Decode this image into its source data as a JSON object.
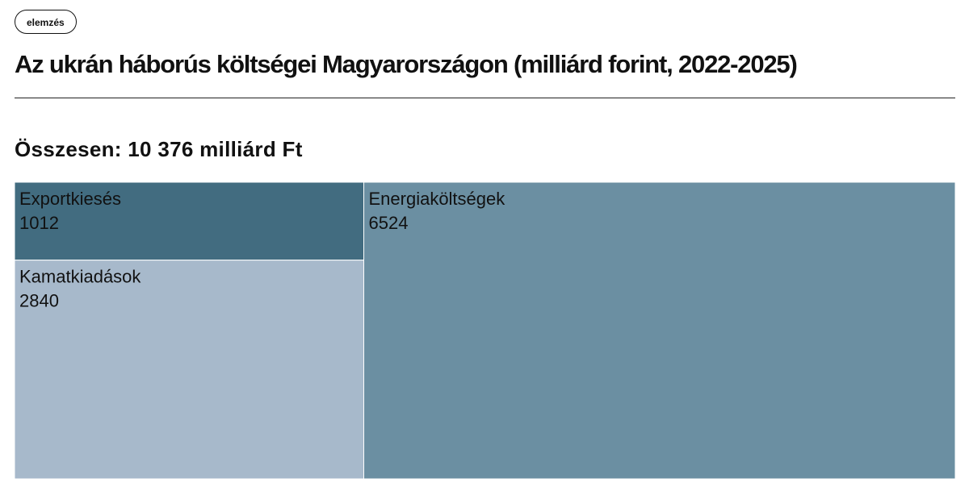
{
  "tag": "elemzés",
  "chart_data": {
    "type": "treemap",
    "title": "Az ukrán háborús költségei Magyarországon (milliárd forint, 2022-2025)",
    "subtitle": "Összesen: 10 376 milliárd Ft",
    "categories": [
      "Exportkiesés",
      "Kamatkiadások",
      "Energiaköltségek"
    ],
    "values": [
      1012,
      2840,
      6524
    ],
    "colors": [
      "#426c80",
      "#a7b9cb",
      "#6b8fa2"
    ]
  }
}
